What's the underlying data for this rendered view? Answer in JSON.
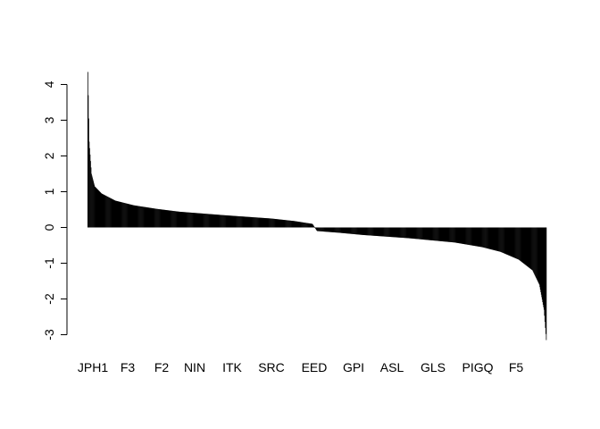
{
  "chart_data": {
    "type": "bar",
    "title": "",
    "xlabel": "",
    "ylabel": "",
    "ylim": [
      -3.2,
      4.4
    ],
    "yticks": [
      -3,
      -2,
      -1,
      0,
      1,
      2,
      3,
      4
    ],
    "bar_count": 1000,
    "x_tick_labels": [
      "JPH1",
      "F3",
      "F2",
      "NIN",
      "ITK",
      "SRC",
      "EED",
      "GPI",
      "ASL",
      "GLS",
      "PIGQ",
      "F5"
    ],
    "value_profile": {
      "description_points": [
        [
          0.0,
          4.35
        ],
        [
          0.003,
          2.4
        ],
        [
          0.008,
          1.5
        ],
        [
          0.015,
          1.15
        ],
        [
          0.03,
          0.95
        ],
        [
          0.06,
          0.75
        ],
        [
          0.1,
          0.62
        ],
        [
          0.15,
          0.52
        ],
        [
          0.2,
          0.44
        ],
        [
          0.3,
          0.34
        ],
        [
          0.4,
          0.25
        ],
        [
          0.45,
          0.18
        ],
        [
          0.49,
          0.1
        ],
        [
          0.5,
          -0.1
        ],
        [
          0.55,
          -0.15
        ],
        [
          0.6,
          -0.21
        ],
        [
          0.7,
          -0.3
        ],
        [
          0.8,
          -0.42
        ],
        [
          0.86,
          -0.55
        ],
        [
          0.9,
          -0.68
        ],
        [
          0.94,
          -0.9
        ],
        [
          0.97,
          -1.2
        ],
        [
          0.985,
          -1.6
        ],
        [
          0.995,
          -2.3
        ],
        [
          1.0,
          -3.15
        ]
      ]
    },
    "grid": false,
    "legend": "none",
    "bar_color": "#000000"
  }
}
